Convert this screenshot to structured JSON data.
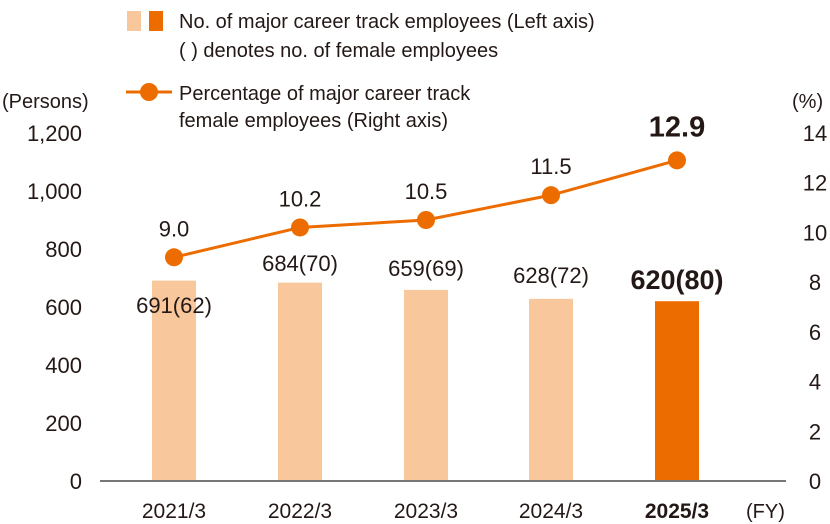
{
  "chart_data": {
    "type": "bar+line",
    "categories": [
      "2021/3",
      "2022/3",
      "2023/3",
      "2024/3",
      "2025/3"
    ],
    "x_unit": "(FY)",
    "left_axis": {
      "label": "(Persons)",
      "range": [
        0,
        1200
      ],
      "ticks": [
        "0",
        "200",
        "400",
        "600",
        "800",
        "1,000",
        "1,200"
      ]
    },
    "right_axis": {
      "label": "(%)",
      "range": [
        0,
        14
      ],
      "ticks": [
        "0",
        "2",
        "4",
        "6",
        "8",
        "10",
        "12",
        "14"
      ]
    },
    "series": [
      {
        "name": "No. of major career track employees (Left axis)",
        "type": "bar",
        "axis": "left",
        "values": [
          691,
          684,
          659,
          628,
          620
        ],
        "female_values": [
          62,
          70,
          69,
          72,
          80
        ],
        "labels": [
          "691(62)",
          "684(70)",
          "659(69)",
          "628(72)",
          "620(80)"
        ],
        "colors": [
          "#f8c89c",
          "#f8c89c",
          "#f8c89c",
          "#f8c89c",
          "#ec6c00"
        ]
      },
      {
        "name": "Percentage of major career track female employees (Right axis)",
        "type": "line",
        "axis": "right",
        "values": [
          9.0,
          10.2,
          10.5,
          11.5,
          12.9
        ],
        "labels": [
          "9.0",
          "10.2",
          "10.5",
          "11.5",
          "12.9"
        ],
        "color": "#ec6c00"
      }
    ],
    "legend": {
      "placement": "top",
      "bar_line1": "No. of major career track employees (Left axis)",
      "bar_line2": "( ) denotes no. of female employees",
      "line_line1": "Percentage of major career track",
      "line_line2": "female employees (Right axis)"
    },
    "highlight_index": 4,
    "grid": false
  }
}
